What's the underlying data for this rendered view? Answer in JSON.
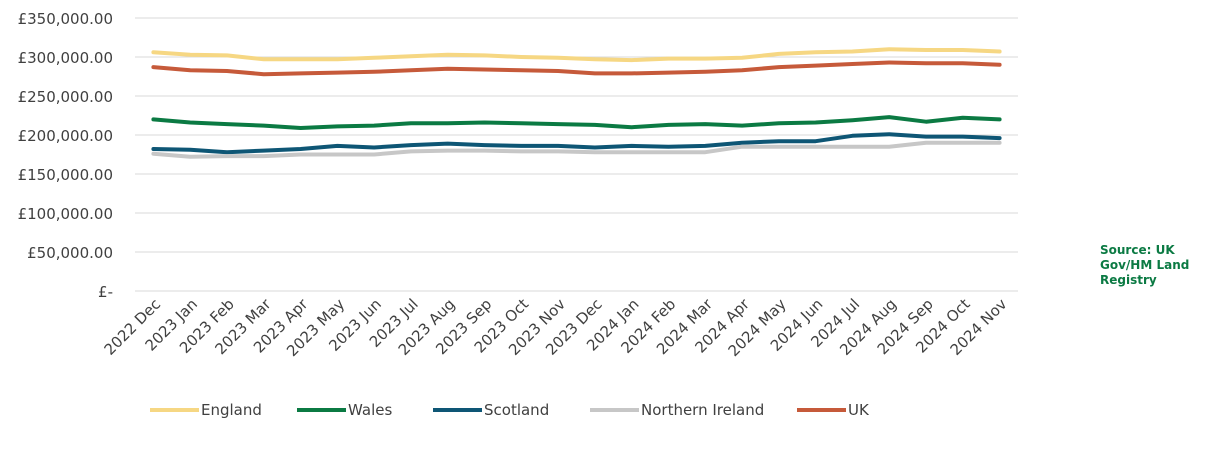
{
  "source_note": "Source: UK Gov/HM Land Registry",
  "colors": {
    "England": "#f6d783",
    "Wales": "#0b7a43",
    "Scotland": "#0e5675",
    "Northern Ireland": "#c7c7c7",
    "UK": "#c65a3a",
    "grid": "#d9d9d9",
    "text": "#404040"
  },
  "chart_data": {
    "type": "line",
    "title": "",
    "xlabel": "",
    "ylabel": "",
    "ylim": [
      0,
      350000
    ],
    "yticks": [
      350000,
      300000,
      250000,
      200000,
      150000,
      100000,
      50000,
      0
    ],
    "ytick_labels": [
      "£350,000.00",
      "£300,000.00",
      "£250,000.00",
      "£200,000.00",
      "£150,000.00",
      "£100,000.00",
      "£50,000.00",
      "£-"
    ],
    "grid": "horizontal",
    "legend_position": "bottom",
    "categories": [
      "2022 Dec",
      "2023 Jan",
      "2023 Feb",
      "2023 Mar",
      "2023 Apr",
      "2023 May",
      "2023 Jun",
      "2023 Jul",
      "2023 Aug",
      "2023 Sep",
      "2023 Oct",
      "2023 Nov",
      "2023 Dec",
      "2024 Jan",
      "2024 Feb",
      "2024 Mar",
      "2024 Apr",
      "2024 May",
      "2024 Jun",
      "2024 Jul",
      "2024 Aug",
      "2024 Sep",
      "2024 Oct",
      "2024 Nov"
    ],
    "series": [
      {
        "name": "England",
        "values": [
          306000,
          303000,
          302000,
          297000,
          297000,
          297000,
          299000,
          301000,
          303000,
          302000,
          300000,
          299000,
          297000,
          296000,
          298000,
          298000,
          299000,
          304000,
          306000,
          307000,
          310000,
          309000,
          309000,
          307000
        ]
      },
      {
        "name": "Wales",
        "values": [
          220000,
          216000,
          214000,
          212000,
          209000,
          211000,
          212000,
          215000,
          215000,
          216000,
          215000,
          214000,
          213000,
          210000,
          213000,
          214000,
          212000,
          215000,
          216000,
          219000,
          223000,
          217000,
          222000,
          220000
        ]
      },
      {
        "name": "Scotland",
        "values": [
          182000,
          181000,
          178000,
          180000,
          182000,
          186000,
          184000,
          187000,
          189000,
          187000,
          186000,
          186000,
          184000,
          186000,
          185000,
          186000,
          190000,
          192000,
          192000,
          199000,
          201000,
          198000,
          198000,
          196000
        ]
      },
      {
        "name": "Northern Ireland",
        "values": [
          176000,
          172000,
          173000,
          173000,
          175000,
          175000,
          175000,
          179000,
          180000,
          180000,
          179000,
          179000,
          178000,
          178000,
          178000,
          178000,
          185000,
          185000,
          185000,
          185000,
          185000,
          190000,
          190000,
          190000
        ]
      },
      {
        "name": "UK",
        "values": [
          287000,
          283000,
          282000,
          278000,
          279000,
          280000,
          281000,
          283000,
          285000,
          284000,
          283000,
          282000,
          279000,
          279000,
          280000,
          281000,
          283000,
          287000,
          289000,
          291000,
          293000,
          292000,
          292000,
          290000
        ]
      }
    ]
  }
}
